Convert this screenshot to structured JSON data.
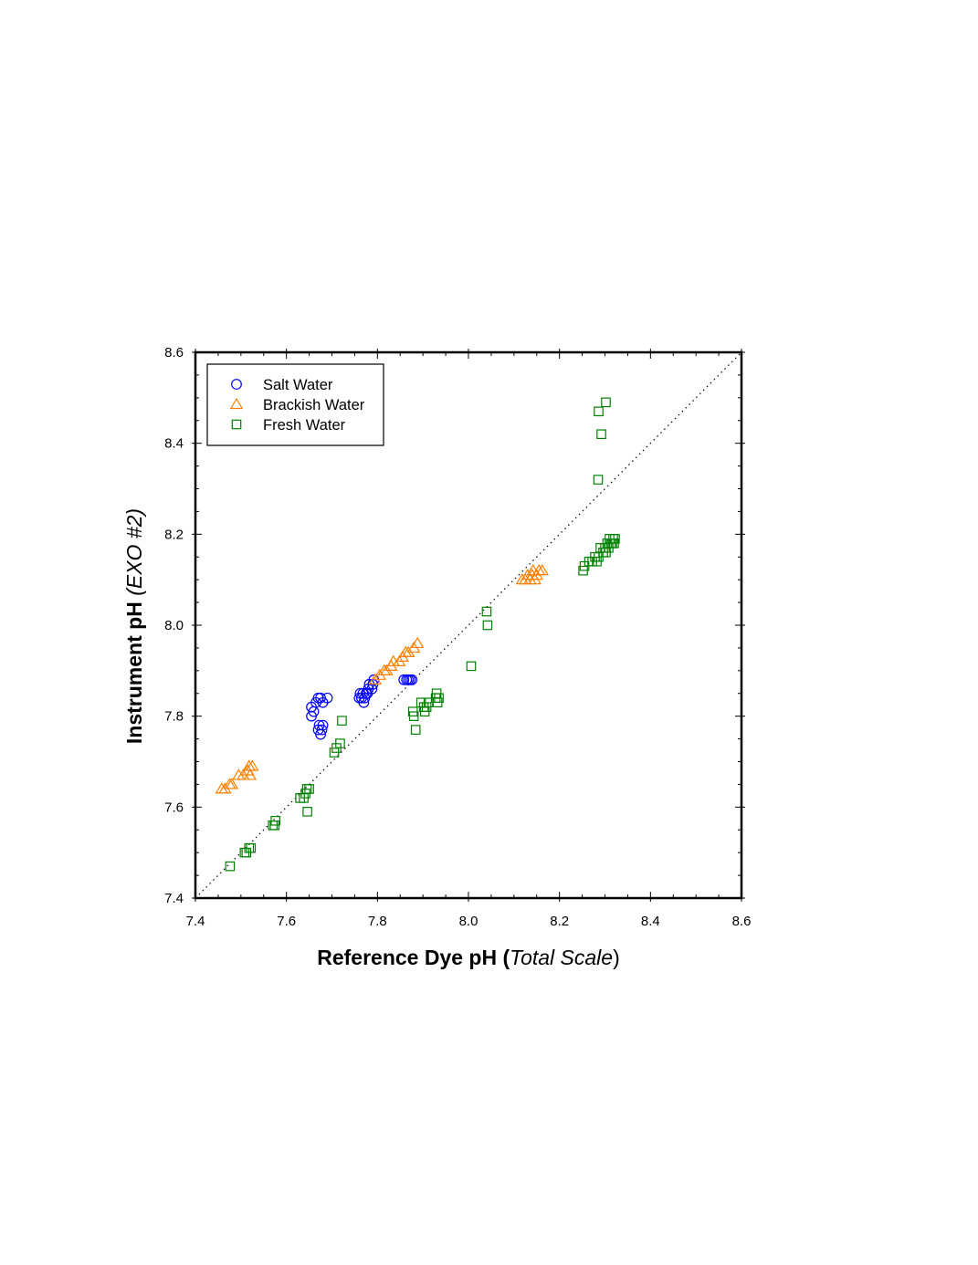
{
  "chart_data": {
    "type": "scatter",
    "xlabel": {
      "prefix": "Reference Dye pH (",
      "italic": "Total Scale",
      "suffix": ")"
    },
    "ylabel": {
      "prefix": "Instrument pH ",
      "italic": "(EXO #2)",
      "suffix": ""
    },
    "xlim": [
      7.4,
      8.6
    ],
    "ylim": [
      7.4,
      8.6
    ],
    "x_ticks": [
      "7.4",
      "7.6",
      "7.8",
      "8.0",
      "8.2",
      "8.4",
      "8.6"
    ],
    "y_ticks": [
      "7.4",
      "7.6",
      "7.8",
      "8.0",
      "8.2",
      "8.4",
      "8.6"
    ],
    "reference_line": "1:1",
    "legend_position": "top-left",
    "series": [
      {
        "name": "Salt Water",
        "marker": "circle",
        "color": "#0000ff",
        "points": [
          [
            7.655,
            7.82
          ],
          [
            7.66,
            7.81
          ],
          [
            7.655,
            7.8
          ],
          [
            7.665,
            7.83
          ],
          [
            7.67,
            7.84
          ],
          [
            7.675,
            7.84
          ],
          [
            7.68,
            7.83
          ],
          [
            7.69,
            7.84
          ],
          [
            7.672,
            7.78
          ],
          [
            7.68,
            7.78
          ],
          [
            7.67,
            7.77
          ],
          [
            7.675,
            7.76
          ],
          [
            7.678,
            7.77
          ],
          [
            7.76,
            7.84
          ],
          [
            7.762,
            7.85
          ],
          [
            7.765,
            7.84
          ],
          [
            7.768,
            7.85
          ],
          [
            7.77,
            7.83
          ],
          [
            7.775,
            7.85
          ],
          [
            7.772,
            7.84
          ],
          [
            7.778,
            7.85
          ],
          [
            7.78,
            7.86
          ],
          [
            7.782,
            7.87
          ],
          [
            7.788,
            7.86
          ],
          [
            7.79,
            7.87
          ],
          [
            7.792,
            7.88
          ],
          [
            7.858,
            7.88
          ],
          [
            7.864,
            7.88
          ],
          [
            7.868,
            7.88
          ],
          [
            7.872,
            7.88
          ],
          [
            7.876,
            7.88
          ]
        ]
      },
      {
        "name": "Brackish Water",
        "marker": "triangle",
        "color": "#ff8000",
        "points": [
          [
            7.458,
            7.64
          ],
          [
            7.465,
            7.64
          ],
          [
            7.475,
            7.65
          ],
          [
            7.48,
            7.65
          ],
          [
            7.495,
            7.67
          ],
          [
            7.505,
            7.67
          ],
          [
            7.515,
            7.68
          ],
          [
            7.518,
            7.69
          ],
          [
            7.52,
            7.67
          ],
          [
            7.525,
            7.69
          ],
          [
            7.795,
            7.88
          ],
          [
            7.805,
            7.89
          ],
          [
            7.815,
            7.9
          ],
          [
            7.82,
            7.9
          ],
          [
            7.83,
            7.91
          ],
          [
            7.835,
            7.92
          ],
          [
            7.848,
            7.92
          ],
          [
            7.855,
            7.93
          ],
          [
            7.862,
            7.94
          ],
          [
            7.868,
            7.94
          ],
          [
            7.88,
            7.95
          ],
          [
            7.888,
            7.96
          ],
          [
            8.118,
            8.1
          ],
          [
            8.125,
            8.1
          ],
          [
            8.13,
            8.11
          ],
          [
            8.135,
            8.1
          ],
          [
            8.14,
            8.11
          ],
          [
            8.142,
            8.12
          ],
          [
            8.146,
            8.1
          ],
          [
            8.15,
            8.11
          ],
          [
            8.155,
            8.12
          ],
          [
            8.162,
            8.12
          ]
        ]
      },
      {
        "name": "Fresh Water",
        "marker": "square",
        "color": "#008000",
        "points": [
          [
            7.476,
            7.47
          ],
          [
            7.508,
            7.5
          ],
          [
            7.512,
            7.5
          ],
          [
            7.518,
            7.51
          ],
          [
            7.522,
            7.51
          ],
          [
            7.57,
            7.56
          ],
          [
            7.574,
            7.56
          ],
          [
            7.576,
            7.57
          ],
          [
            7.63,
            7.62
          ],
          [
            7.638,
            7.62
          ],
          [
            7.642,
            7.63
          ],
          [
            7.645,
            7.64
          ],
          [
            7.65,
            7.64
          ],
          [
            7.646,
            7.59
          ],
          [
            7.705,
            7.72
          ],
          [
            7.71,
            7.73
          ],
          [
            7.718,
            7.74
          ],
          [
            7.722,
            7.79
          ],
          [
            7.878,
            7.81
          ],
          [
            7.88,
            7.8
          ],
          [
            7.884,
            7.77
          ],
          [
            7.896,
            7.83
          ],
          [
            7.902,
            7.82
          ],
          [
            7.904,
            7.81
          ],
          [
            7.908,
            7.82
          ],
          [
            7.912,
            7.83
          ],
          [
            7.928,
            7.84
          ],
          [
            7.93,
            7.85
          ],
          [
            7.932,
            7.83
          ],
          [
            7.935,
            7.84
          ],
          [
            8.006,
            7.91
          ],
          [
            8.04,
            8.03
          ],
          [
            8.042,
            8.0
          ],
          [
            8.252,
            8.12
          ],
          [
            8.255,
            8.13
          ],
          [
            8.265,
            8.14
          ],
          [
            8.272,
            8.14
          ],
          [
            8.278,
            8.15
          ],
          [
            8.282,
            8.14
          ],
          [
            8.286,
            8.15
          ],
          [
            8.29,
            8.17
          ],
          [
            8.296,
            8.16
          ],
          [
            8.3,
            8.17
          ],
          [
            8.302,
            8.16
          ],
          [
            8.305,
            8.18
          ],
          [
            8.308,
            8.17
          ],
          [
            8.31,
            8.19
          ],
          [
            8.313,
            8.18
          ],
          [
            8.316,
            8.18
          ],
          [
            8.318,
            8.19
          ],
          [
            8.32,
            8.18
          ],
          [
            8.322,
            8.19
          ],
          [
            8.285,
            8.32
          ],
          [
            8.292,
            8.42
          ],
          [
            8.286,
            8.47
          ],
          [
            8.302,
            8.49
          ]
        ]
      }
    ]
  }
}
